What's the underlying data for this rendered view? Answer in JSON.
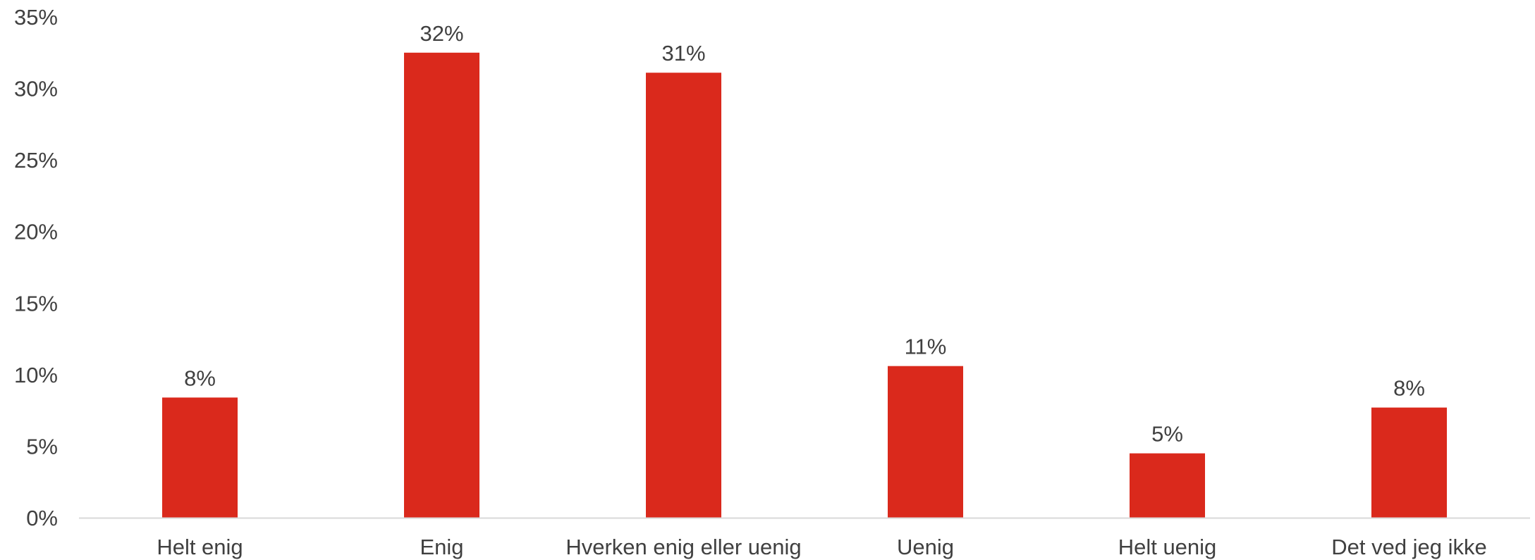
{
  "chart_data": {
    "type": "bar",
    "title": "",
    "xlabel": "",
    "ylabel": "",
    "categories": [
      "Helt enig",
      "Enig",
      "Hverken enig eller uenig",
      "Uenig",
      "Helt uenig",
      "Det ved jeg ikke"
    ],
    "values": [
      8.4,
      32.5,
      31.1,
      10.6,
      4.5,
      7.7
    ],
    "value_labels": [
      "8%",
      "32%",
      "31%",
      "11%",
      "5%",
      "8%"
    ],
    "ylim": [
      0,
      35
    ],
    "yticks": [
      0,
      5,
      10,
      15,
      20,
      25,
      30,
      35
    ],
    "ytick_labels": [
      "0%",
      "5%",
      "10%",
      "15%",
      "20%",
      "25%",
      "30%",
      "35%"
    ],
    "grid": false,
    "legend": "none",
    "colors": {
      "bar": "#DA291C",
      "axis": "#D9D9D9",
      "text": "#404040"
    }
  }
}
